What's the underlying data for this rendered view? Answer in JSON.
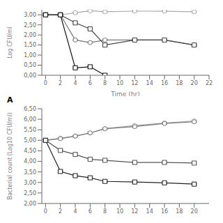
{
  "chart_data": [
    {
      "type": "line",
      "ylabel": "Log CFU/ml",
      "xlabel": "Time (hr)",
      "annotations": [
        "A"
      ],
      "grid": false,
      "ylim": [
        0.0,
        3.25
      ],
      "yticks": [
        {
          "value": 0.0,
          "label": "0,00"
        },
        {
          "value": 0.5,
          "label": "0,50"
        },
        {
          "value": 1.0,
          "label": "1,00"
        },
        {
          "value": 1.5,
          "label": "1,50"
        },
        {
          "value": 2.0,
          "label": "2,00"
        },
        {
          "value": 2.5,
          "label": "2,50"
        },
        {
          "value": 3.0,
          "label": "3,00"
        }
      ],
      "xlim": [
        -0.5,
        22
      ],
      "xticks": [
        0,
        2,
        4,
        6,
        8,
        10,
        12,
        14,
        16,
        18,
        20,
        22
      ],
      "series": [
        {
          "color": "#aaaaaa",
          "marker": "circle",
          "x": [
            0,
            2,
            4,
            6,
            8,
            12,
            16,
            20
          ],
          "values": [
            3.0,
            3.0,
            3.1,
            3.2,
            3.15,
            3.18,
            3.18,
            3.15
          ],
          "yerr": [
            0.04,
            0.04,
            0.04,
            0.05,
            0.04,
            0.04,
            0.04,
            0.04
          ]
        },
        {
          "color": "#777777",
          "marker": "circle",
          "x": [
            0,
            2,
            4,
            6,
            8,
            12,
            16,
            20
          ],
          "values": [
            3.0,
            3.0,
            1.75,
            1.62,
            1.75,
            1.75,
            1.75,
            1.5
          ],
          "yerr": [
            0.04,
            0.04,
            0.04,
            0.04,
            0.04,
            0.04,
            0.04,
            0.04
          ]
        },
        {
          "color": "#444444",
          "marker": "square",
          "x": [
            0,
            2,
            4,
            6,
            8,
            12,
            16,
            20
          ],
          "values": [
            3.0,
            3.0,
            2.6,
            2.3,
            1.5,
            1.75,
            1.75,
            1.5
          ],
          "yerr": [
            0.04,
            0.04,
            0.04,
            0.04,
            0.04,
            0.04,
            0.04,
            0.04
          ]
        },
        {
          "color": "#111111",
          "marker": "square",
          "x": [
            0,
            2,
            4,
            6,
            8
          ],
          "values": [
            3.0,
            3.0,
            0.37,
            0.42,
            0.0
          ],
          "yerr": [
            0.04,
            0.04,
            0.04,
            0.04,
            0.0
          ]
        }
      ]
    },
    {
      "type": "line",
      "ylabel": "Bacterial count (Log10 CFU/ml)",
      "grid": false,
      "ylim": [
        2.0,
        6.5
      ],
      "yticks": [
        {
          "value": 2.0,
          "label": "2,00"
        },
        {
          "value": 2.5,
          "label": "2,50"
        },
        {
          "value": 3.0,
          "label": "3,00"
        },
        {
          "value": 3.5,
          "label": "3,50"
        },
        {
          "value": 4.0,
          "label": "4,00"
        },
        {
          "value": 4.5,
          "label": "4,50"
        },
        {
          "value": 5.0,
          "label": "5,00"
        },
        {
          "value": 5.5,
          "label": "5,50"
        },
        {
          "value": 6.0,
          "label": "6,00"
        },
        {
          "value": 6.5,
          "label": "6,50"
        }
      ],
      "xlim": [
        -0.5,
        22
      ],
      "xticks": [
        0,
        2,
        4,
        6,
        8,
        10,
        12,
        14,
        16,
        18,
        20
      ],
      "series": [
        {
          "color": "#aaaaaa",
          "marker": "circle",
          "x": [
            0,
            2,
            4,
            6,
            8,
            12,
            16,
            20
          ],
          "values": [
            5.0,
            5.1,
            5.2,
            5.35,
            5.55,
            5.7,
            5.82,
            5.92
          ],
          "yerr": [
            0.04,
            0.04,
            0.04,
            0.04,
            0.04,
            0.04,
            0.04,
            0.04
          ]
        },
        {
          "color": "#777777",
          "marker": "circle",
          "x": [
            0,
            2,
            4,
            6,
            8,
            12,
            16,
            20
          ],
          "values": [
            5.0,
            5.08,
            5.2,
            5.35,
            5.55,
            5.65,
            5.8,
            5.88
          ],
          "yerr": [
            0.04,
            0.04,
            0.04,
            0.04,
            0.04,
            0.04,
            0.04,
            0.04
          ]
        },
        {
          "color": "#555555",
          "marker": "square",
          "x": [
            0,
            2,
            4,
            6,
            8,
            12,
            16,
            20
          ],
          "values": [
            5.0,
            4.52,
            4.33,
            4.1,
            4.05,
            3.95,
            3.95,
            3.92
          ],
          "yerr": [
            0.04,
            0.04,
            0.04,
            0.04,
            0.04,
            0.04,
            0.04,
            0.04
          ]
        },
        {
          "color": "#222222",
          "marker": "square",
          "x": [
            0,
            2,
            4,
            6,
            8,
            12,
            16,
            20
          ],
          "values": [
            5.0,
            3.52,
            3.32,
            3.22,
            3.05,
            3.02,
            2.98,
            2.92
          ],
          "yerr": [
            0.04,
            0.04,
            0.04,
            0.04,
            0.04,
            0.04,
            0.04,
            0.04
          ]
        }
      ]
    }
  ]
}
